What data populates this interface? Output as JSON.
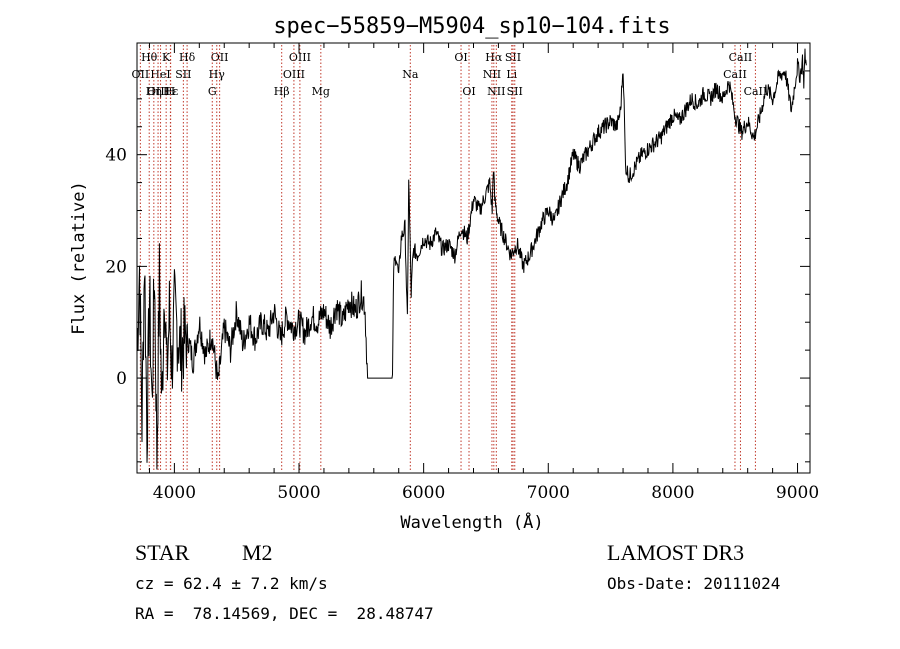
{
  "chart_data": {
    "type": "line",
    "title": "spec−55859−M5904_sp10−104.fits",
    "xlabel": "Wavelength (Å)",
    "ylabel": "Flux (relative)",
    "xlim": [
      3700,
      9100
    ],
    "ylim": [
      -17,
      60
    ],
    "xticks": [
      4000,
      5000,
      6000,
      7000,
      8000,
      9000
    ],
    "yticks": [
      0,
      20,
      40
    ],
    "series": [
      {
        "name": "flux",
        "x": [
          3700,
          3720,
          3740,
          3760,
          3780,
          3800,
          3820,
          3840,
          3860,
          3880,
          3900,
          3920,
          3940,
          3960,
          3980,
          4000,
          4050,
          4100,
          4150,
          4200,
          4250,
          4300,
          4350,
          4400,
          4450,
          4500,
          4550,
          4600,
          4650,
          4700,
          4750,
          4800,
          4850,
          4900,
          4950,
          5000,
          5050,
          5100,
          5150,
          5200,
          5250,
          5300,
          5350,
          5400,
          5450,
          5500,
          5520,
          5530,
          5550,
          5600,
          5700,
          5750,
          5760,
          5780,
          5800,
          5820,
          5850,
          5870,
          5880,
          5900,
          5910,
          5920,
          5950,
          6000,
          6050,
          6100,
          6150,
          6200,
          6250,
          6300,
          6350,
          6400,
          6450,
          6500,
          6530,
          6550,
          6560,
          6570,
          6600,
          6650,
          6700,
          6750,
          6800,
          6850,
          6900,
          6950,
          7000,
          7050,
          7100,
          7150,
          7200,
          7250,
          7300,
          7350,
          7400,
          7450,
          7500,
          7550,
          7580,
          7600,
          7620,
          7650,
          7700,
          7750,
          7800,
          7850,
          7900,
          7950,
          8000,
          8050,
          8100,
          8150,
          8200,
          8250,
          8300,
          8350,
          8400,
          8450,
          8500,
          8550,
          8600,
          8650,
          8700,
          8750,
          8800,
          8850,
          8900,
          8950,
          9000,
          9020,
          9040,
          9050,
          9060,
          9070
        ],
        "y": [
          5,
          20,
          -8,
          22,
          -10,
          15,
          -5,
          20,
          -14,
          18,
          -6,
          18,
          0,
          12,
          2,
          12,
          5,
          8,
          3,
          10,
          4,
          8,
          -1,
          9,
          5,
          12,
          6,
          10,
          7,
          10,
          8,
          12,
          7,
          11,
          9,
          10,
          8,
          11,
          10,
          12,
          9,
          13,
          10,
          14,
          12,
          15,
          14,
          12,
          0,
          0,
          0,
          0,
          20,
          22,
          18,
          25,
          27,
          10,
          36,
          15,
          20,
          23,
          22,
          25,
          24,
          26,
          23,
          24,
          22,
          27,
          25,
          32,
          30,
          33,
          35,
          30,
          38,
          32,
          28,
          25,
          22,
          24,
          20,
          22,
          25,
          28,
          30,
          28,
          32,
          35,
          40,
          38,
          40,
          42,
          44,
          45,
          46,
          45,
          48,
          56,
          38,
          36,
          38,
          40,
          41,
          42,
          43,
          45,
          47,
          46,
          48,
          50,
          49,
          51,
          50,
          52,
          50,
          53,
          47,
          44,
          46,
          43,
          47,
          52,
          50,
          54,
          55,
          48,
          56,
          54,
          57,
          53,
          58,
          56
        ]
      }
    ],
    "lines": [
      {
        "label": "Hθ",
        "row": 1,
        "wl": 3798
      },
      {
        "label": "K",
        "row": 1,
        "wl": 3934
      },
      {
        "label": "Hδ",
        "row": 1,
        "wl": 4102
      },
      {
        "label": "OII",
        "row": 1,
        "wl": 4363
      },
      {
        "label": "OIII",
        "row": 1,
        "wl": 5007
      },
      {
        "label": "OI",
        "row": 1,
        "wl": 6300
      },
      {
        "label": "Hα",
        "row": 1,
        "wl": 6563
      },
      {
        "label": "SII",
        "row": 1,
        "wl": 6717
      },
      {
        "label": "CaII",
        "row": 1,
        "wl": 8542
      },
      {
        "label": "OII",
        "row": 2,
        "wl": 3727
      },
      {
        "label": "HeI",
        "row": 2,
        "wl": 3889
      },
      {
        "label": "SII",
        "row": 2,
        "wl": 4072
      },
      {
        "label": "Hγ",
        "row": 2,
        "wl": 4340
      },
      {
        "label": "OIII",
        "row": 2,
        "wl": 4959
      },
      {
        "label": "Na",
        "row": 2,
        "wl": 5893
      },
      {
        "label": "NII",
        "row": 2,
        "wl": 6548
      },
      {
        "label": "Li",
        "row": 2,
        "wl": 6707
      },
      {
        "label": "CaII",
        "row": 2,
        "wl": 8498
      },
      {
        "label": "OIII",
        "row": 3,
        "wl": 3869
      },
      {
        "label": "Hε",
        "row": 3,
        "wl": 3970
      },
      {
        "label": "Hη",
        "row": 3,
        "wl": 3835
      },
      {
        "label": "H",
        "row": 3,
        "wl": 3968
      },
      {
        "label": "G",
        "row": 3,
        "wl": 4304
      },
      {
        "label": "Hβ",
        "row": 3,
        "wl": 4861
      },
      {
        "label": "Mg",
        "row": 3,
        "wl": 5175
      },
      {
        "label": "OI",
        "row": 3,
        "wl": 6364
      },
      {
        "label": "NII",
        "row": 3,
        "wl": 6583
      },
      {
        "label": "SII",
        "row": 3,
        "wl": 6731
      },
      {
        "label": "CaII",
        "row": 3,
        "wl": 8662
      }
    ]
  },
  "info": {
    "class": "STAR",
    "subclass": "M2",
    "survey": "LAMOST DR3",
    "cz": "cz = 62.4 ± 7.2 km/s",
    "obs_date": "Obs-Date: 20111024",
    "coords": "RA =  78.14569, DEC =  28.48747"
  }
}
